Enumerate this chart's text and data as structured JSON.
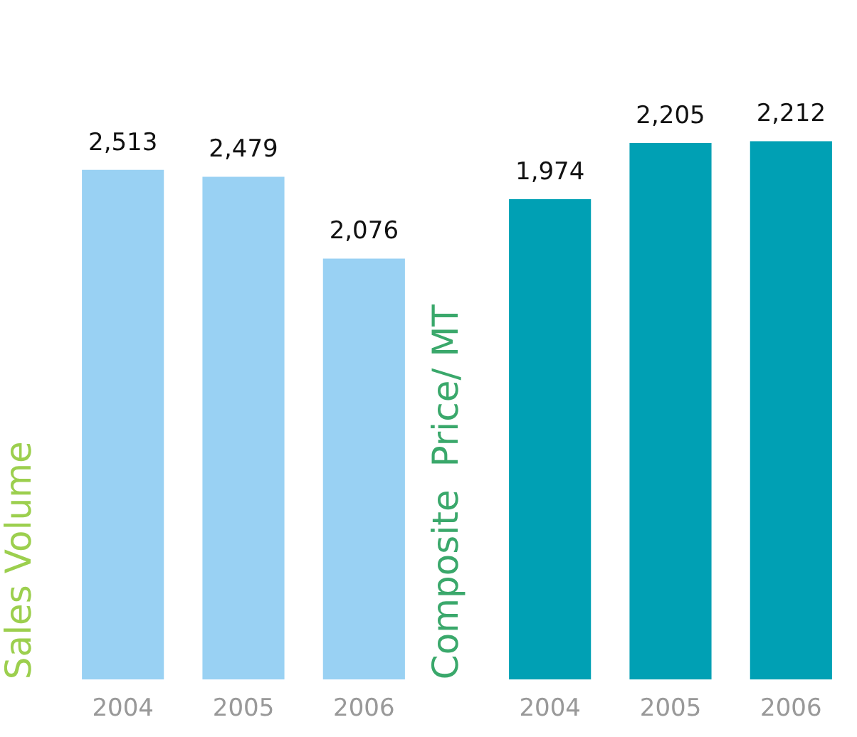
{
  "chart_data": [
    {
      "type": "bar",
      "ylabel": "Sales Volume",
      "categories": [
        "2004",
        "2005",
        "2006"
      ],
      "values": [
        2513,
        2479,
        2076
      ],
      "value_labels": [
        "2,513",
        "2,479",
        "2,076"
      ],
      "color": "#99d1f3",
      "grid": false,
      "legend": false
    },
    {
      "type": "bar",
      "ylabel": "Composite  Price/ MT",
      "categories": [
        "2004",
        "2005",
        "2006"
      ],
      "values": [
        1974,
        2205,
        2212
      ],
      "value_labels": [
        "1,974",
        "2,205",
        "2,212"
      ],
      "color": "#00a0b4",
      "grid": false,
      "legend": false
    }
  ]
}
